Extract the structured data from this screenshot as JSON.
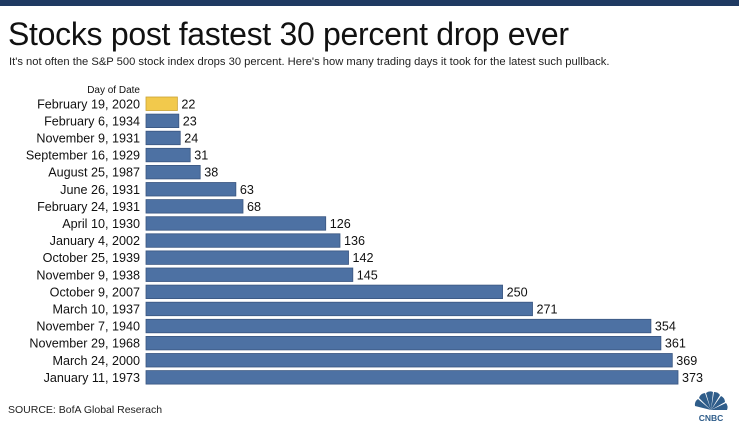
{
  "title": "Stocks post fastest 30 percent drop ever",
  "subtitle": "It's not often the S&P 500 stock index drops 30 percent. Here's how many trading days it took for the latest such pullback.",
  "source": "SOURCE: BofA Global Reserach",
  "logo_text": "CNBC",
  "colors": {
    "highlight": "#f2c94c",
    "bar": "#4d71a3",
    "bar_stroke": "#3a5680",
    "top_bar": "#1f3a62"
  },
  "chart_data": {
    "type": "bar",
    "orientation": "horizontal",
    "category_header": "Day of Date",
    "categories": [
      "February 19, 2020",
      "February 6, 1934",
      "November 9, 1931",
      "September 16, 1929",
      "August 25, 1987",
      "June 26, 1931",
      "February 24, 1931",
      "April 10, 1930",
      "January 4, 2002",
      "October 25, 1939",
      "November 9, 1938",
      "October 9, 2007",
      "March 10, 1937",
      "November 7, 1940",
      "November 29, 1968",
      "March 24, 2000",
      "January 11, 1973"
    ],
    "values": [
      22,
      23,
      24,
      31,
      38,
      63,
      68,
      126,
      136,
      142,
      145,
      250,
      271,
      354,
      361,
      369,
      373
    ],
    "highlighted_index": 0,
    "xlim": [
      0,
      373
    ],
    "data_labels": true,
    "grid": false
  }
}
